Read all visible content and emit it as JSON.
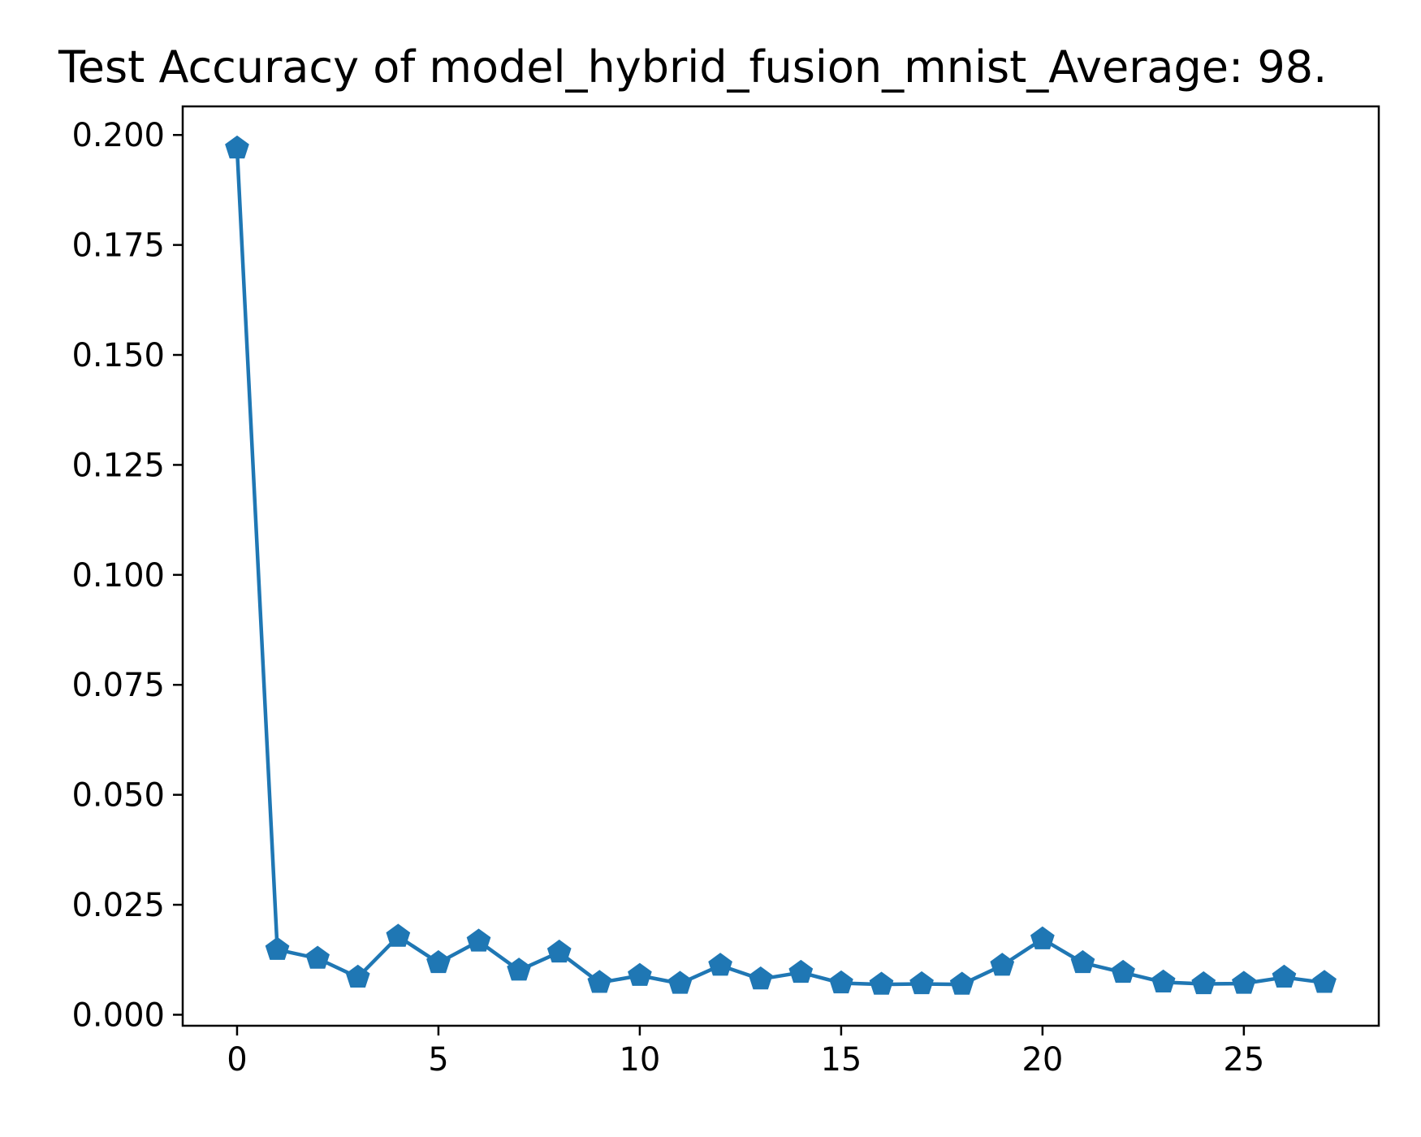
{
  "chart_data": {
    "type": "line",
    "title": "Test Accuracy of model_hybrid_fusion_mnist_Average: 98.",
    "xlabel": "",
    "ylabel": "",
    "xlim": [
      -1.35,
      28.35
    ],
    "ylim": [
      -0.0025,
      0.2065
    ],
    "x_ticks": [
      0,
      5,
      10,
      15,
      20,
      25
    ],
    "x_tick_labels": [
      "0",
      "5",
      "10",
      "15",
      "20",
      "25"
    ],
    "y_ticks": [
      0.0,
      0.025,
      0.05,
      0.075,
      0.1,
      0.125,
      0.15,
      0.175,
      0.2
    ],
    "y_tick_labels": [
      "0.000",
      "0.025",
      "0.050",
      "0.075",
      "0.100",
      "0.125",
      "0.150",
      "0.175",
      "0.200"
    ],
    "grid": false,
    "marker": "pentagon",
    "series": [
      {
        "color": "#1f77b4",
        "x": [
          0,
          1,
          2,
          3,
          4,
          5,
          6,
          7,
          8,
          9,
          10,
          11,
          12,
          13,
          14,
          15,
          16,
          17,
          18,
          19,
          20,
          21,
          22,
          23,
          24,
          25,
          26,
          27
        ],
        "values": [
          0.197,
          0.0148,
          0.0128,
          0.0085,
          0.0178,
          0.0118,
          0.0167,
          0.0101,
          0.0142,
          0.0073,
          0.0089,
          0.0071,
          0.0112,
          0.0081,
          0.0096,
          0.0072,
          0.0069,
          0.007,
          0.0069,
          0.0112,
          0.0172,
          0.0118,
          0.0096,
          0.0074,
          0.007,
          0.0071,
          0.0085,
          0.0073
        ]
      }
    ]
  }
}
